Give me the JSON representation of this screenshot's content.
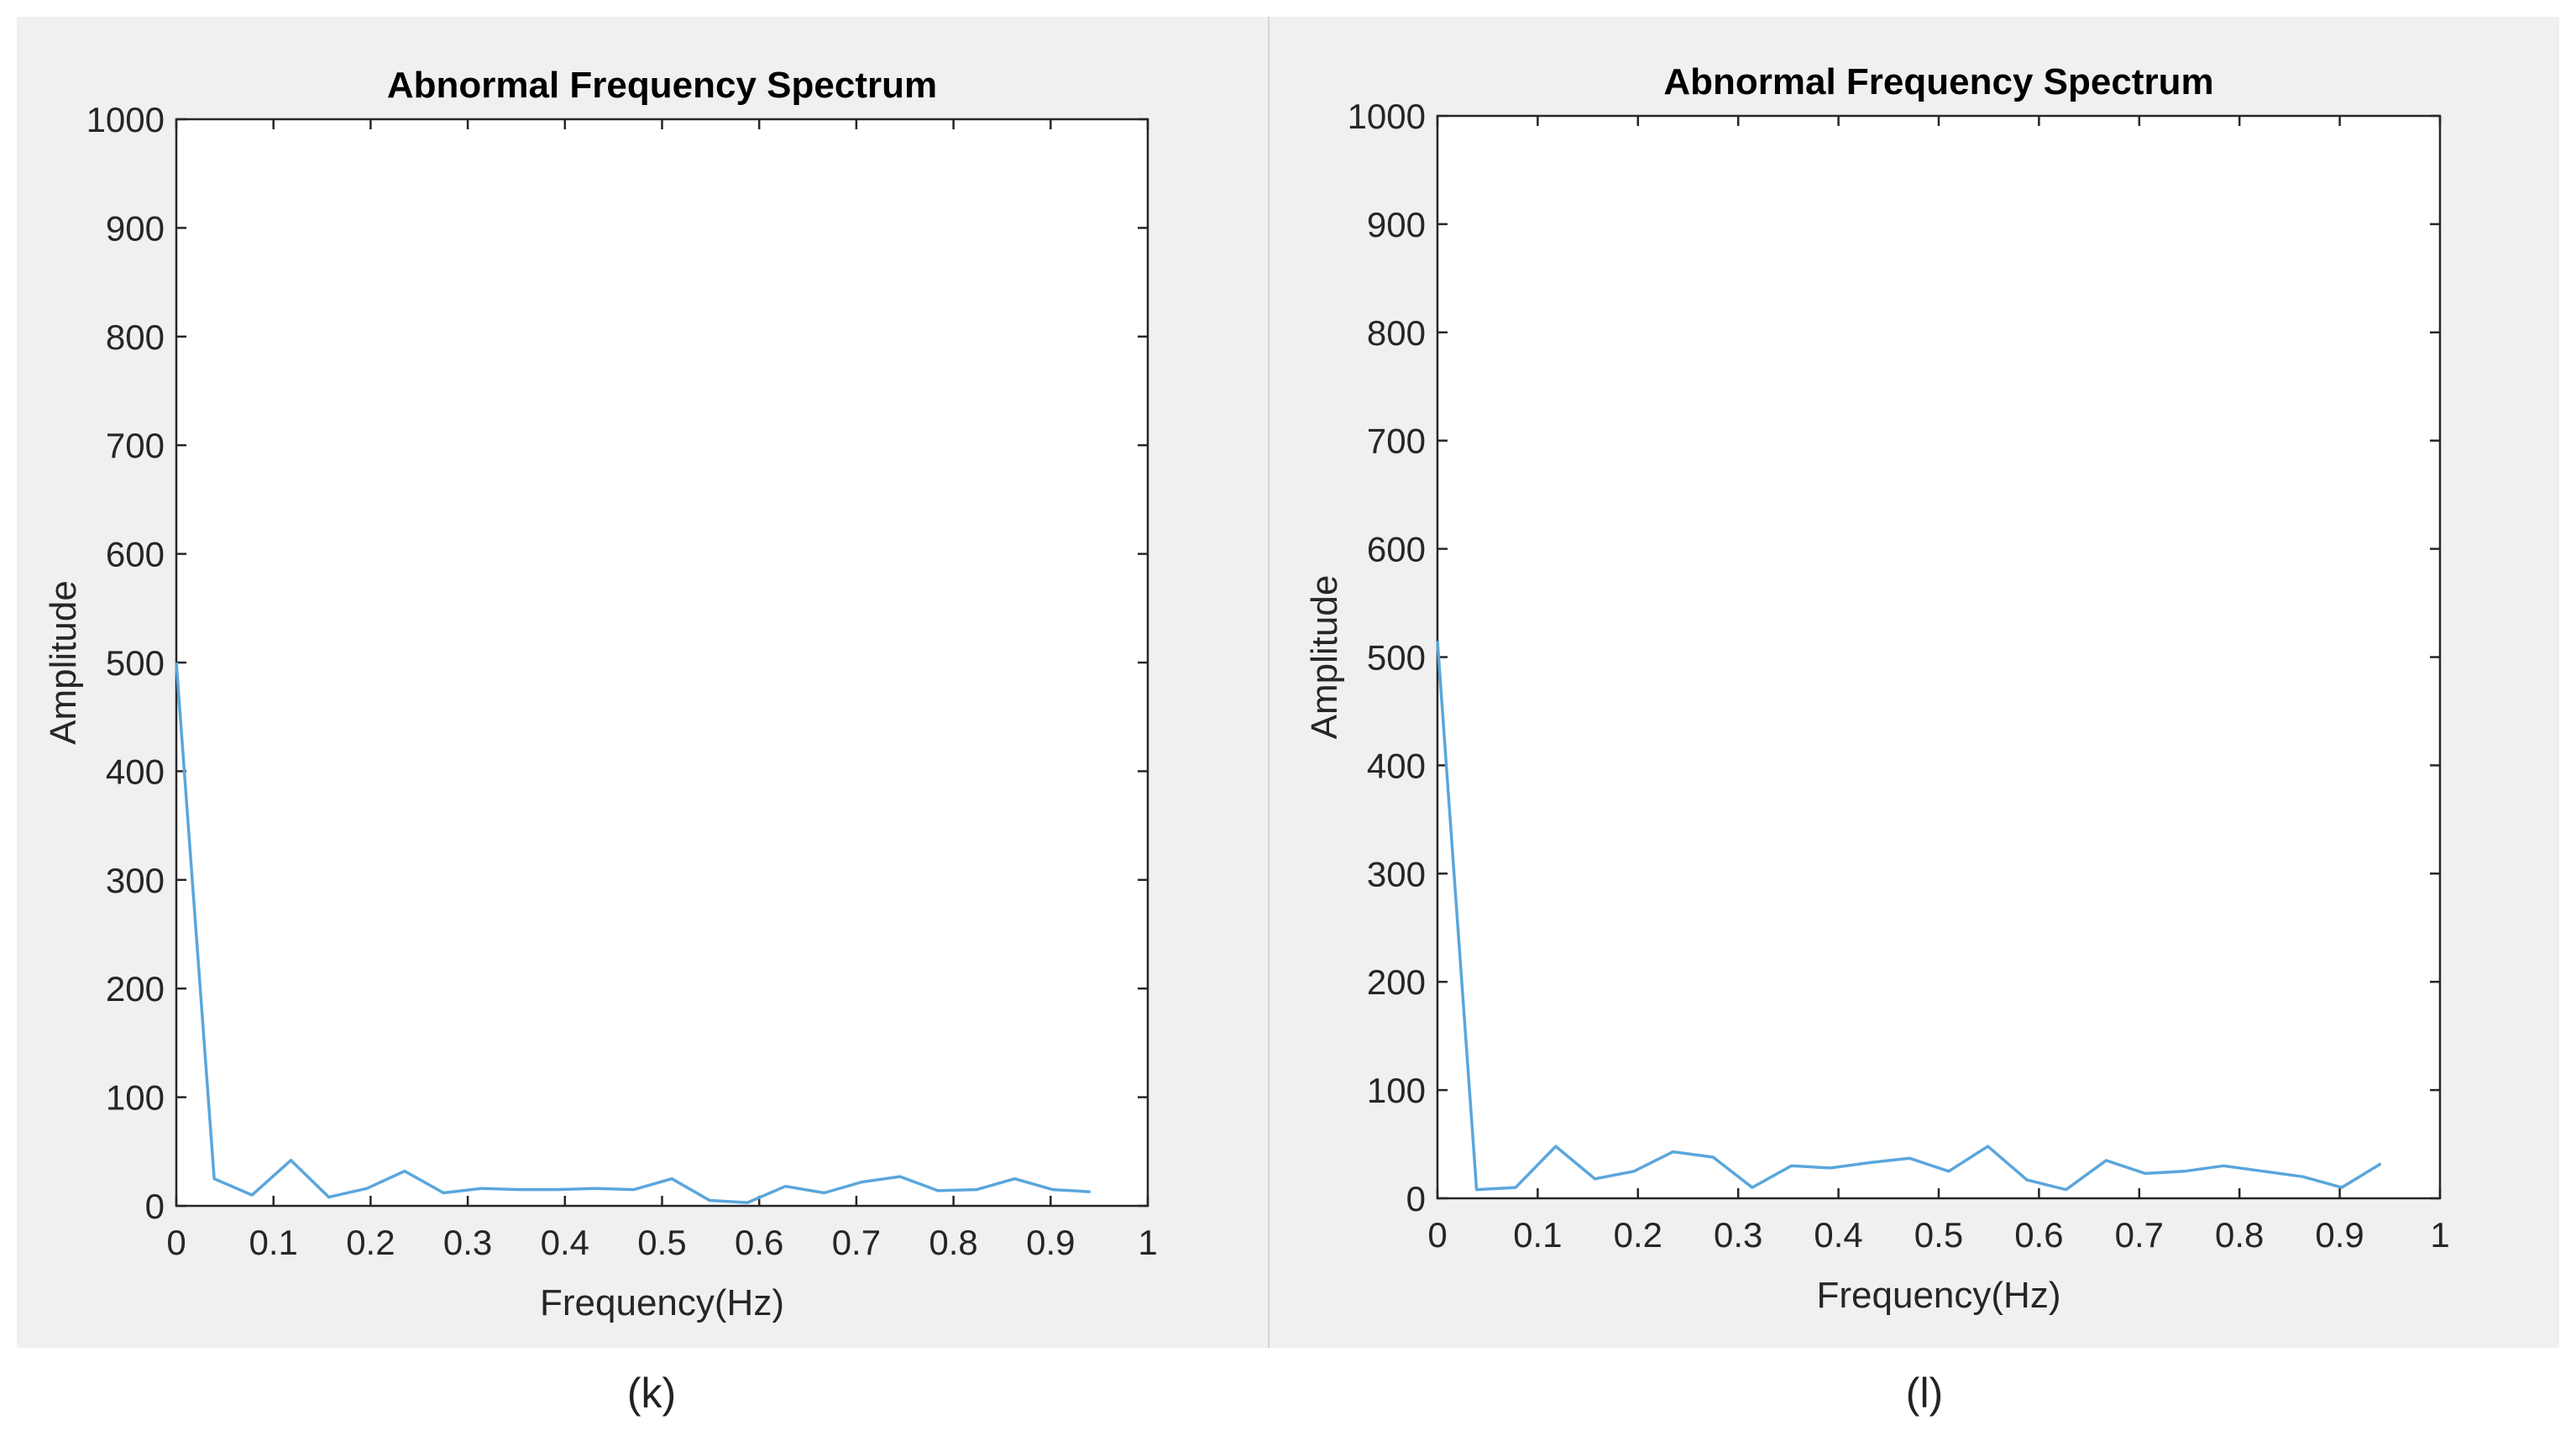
{
  "chart_data": [
    {
      "id": "k",
      "type": "line",
      "title": "Abnormal Frequency Spectrum",
      "xlabel": "Frequency(Hz)",
      "ylabel": "Amplitude",
      "xlim": [
        0,
        1
      ],
      "ylim": [
        0,
        1000
      ],
      "xticks": [
        0,
        0.1,
        0.2,
        0.3,
        0.4,
        0.5,
        0.6,
        0.7,
        0.8,
        0.9,
        1
      ],
      "xtick_labels": [
        "0",
        "0.1",
        "0.2",
        "0.3",
        "0.4",
        "0.5",
        "0.6",
        "0.7",
        "0.8",
        "0.9",
        "1"
      ],
      "yticks": [
        0,
        100,
        200,
        300,
        400,
        500,
        600,
        700,
        800,
        900,
        1000
      ],
      "ytick_labels": [
        "0",
        "100",
        "200",
        "300",
        "400",
        "500",
        "600",
        "700",
        "800",
        "900",
        "1000"
      ],
      "line_color": "#5aa6dc",
      "grid": false,
      "x": [
        0,
        0.039,
        0.078,
        0.118,
        0.157,
        0.196,
        0.235,
        0.275,
        0.314,
        0.353,
        0.392,
        0.431,
        0.471,
        0.51,
        0.549,
        0.588,
        0.627,
        0.667,
        0.706,
        0.745,
        0.784,
        0.824,
        0.863,
        0.902,
        0.941
      ],
      "y": [
        500,
        25,
        10,
        42,
        8,
        16,
        32,
        12,
        16,
        15,
        15,
        16,
        15,
        25,
        5,
        3,
        18,
        12,
        22,
        27,
        14,
        15,
        25,
        15,
        13
      ]
    },
    {
      "id": "l",
      "type": "line",
      "title": "Abnormal Frequency Spectrum",
      "xlabel": "Frequency(Hz)",
      "ylabel": "Amplitude",
      "xlim": [
        0,
        1
      ],
      "ylim": [
        0,
        1000
      ],
      "xticks": [
        0,
        0.1,
        0.2,
        0.3,
        0.4,
        0.5,
        0.6,
        0.7,
        0.8,
        0.9,
        1
      ],
      "xtick_labels": [
        "0",
        "0.1",
        "0.2",
        "0.3",
        "0.4",
        "0.5",
        "0.6",
        "0.7",
        "0.8",
        "0.9",
        "1"
      ],
      "yticks": [
        0,
        100,
        200,
        300,
        400,
        500,
        600,
        700,
        800,
        900,
        1000
      ],
      "ytick_labels": [
        "0",
        "100",
        "200",
        "300",
        "400",
        "500",
        "600",
        "700",
        "800",
        "900",
        "1000"
      ],
      "line_color": "#5aa6dc",
      "grid": false,
      "x": [
        0,
        0.039,
        0.078,
        0.118,
        0.157,
        0.196,
        0.235,
        0.275,
        0.314,
        0.353,
        0.392,
        0.431,
        0.471,
        0.51,
        0.549,
        0.588,
        0.627,
        0.667,
        0.706,
        0.745,
        0.784,
        0.824,
        0.863,
        0.902,
        0.941
      ],
      "y": [
        515,
        8,
        10,
        48,
        18,
        25,
        43,
        38,
        10,
        30,
        28,
        33,
        37,
        25,
        48,
        17,
        8,
        35,
        23,
        25,
        30,
        25,
        20,
        10,
        32
      ]
    }
  ],
  "captions": {
    "k": "(k)",
    "l": "(l)"
  }
}
